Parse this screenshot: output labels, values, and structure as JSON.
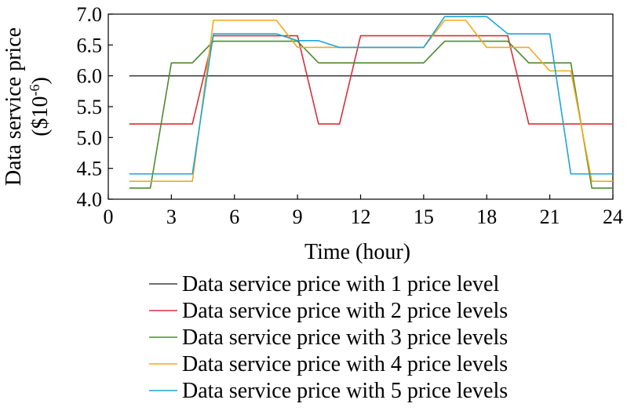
{
  "chart_data": {
    "type": "line",
    "xlabel": "Time (hour)",
    "ylabel": "Data service price",
    "ylabel_unit_prefix": "($10",
    "ylabel_unit_exp": "-6",
    "ylabel_unit_suffix": ")",
    "xlim": [
      0,
      24
    ],
    "ylim": [
      4.0,
      7.0
    ],
    "xticks": [
      0,
      3,
      6,
      9,
      12,
      15,
      18,
      21,
      24
    ],
    "yticks": [
      4.0,
      4.5,
      5.0,
      5.5,
      6.0,
      6.5,
      7.0
    ],
    "xtick_labels": [
      "0",
      "3",
      "6",
      "9",
      "12",
      "15",
      "18",
      "21",
      "24"
    ],
    "ytick_labels": [
      "4.0",
      "4.5",
      "5.0",
      "5.5",
      "6.0",
      "6.5",
      "7.0"
    ],
    "grid": false,
    "legend_position": "bottom",
    "series": [
      {
        "name": "Data service price with 1 price level",
        "color": "#404040",
        "x": [
          1,
          24
        ],
        "y": [
          6.0,
          6.0
        ]
      },
      {
        "name": "Data service price with 2 price levels",
        "color": "#d7303a",
        "x": [
          1,
          4,
          5,
          9,
          10,
          11,
          12,
          19,
          20,
          24
        ],
        "y": [
          5.22,
          5.22,
          6.65,
          6.65,
          5.22,
          5.22,
          6.65,
          6.65,
          5.22,
          5.22
        ]
      },
      {
        "name": "Data service price with 3 price levels",
        "color": "#4d8a2e",
        "x": [
          1,
          2,
          3,
          4,
          5,
          8,
          9,
          10,
          15,
          16,
          19,
          20,
          22,
          23,
          24
        ],
        "y": [
          4.18,
          4.18,
          6.21,
          6.21,
          6.56,
          6.56,
          6.56,
          6.21,
          6.21,
          6.56,
          6.56,
          6.21,
          6.21,
          4.18,
          4.18
        ]
      },
      {
        "name": "Data service price with 4 price levels",
        "color": "#f2a91d",
        "x": [
          1,
          4,
          5,
          8,
          9,
          11,
          15,
          16,
          17,
          18,
          20,
          21,
          22,
          23,
          24
        ],
        "y": [
          4.29,
          4.29,
          6.9,
          6.9,
          6.46,
          6.46,
          6.46,
          6.9,
          6.9,
          6.46,
          6.46,
          6.08,
          6.08,
          4.29,
          4.29
        ]
      },
      {
        "name": "Data service price with 5 price levels",
        "color": "#1da6d6",
        "x": [
          1,
          4,
          5,
          8,
          9,
          10,
          11,
          15,
          16,
          18,
          19,
          21,
          22,
          24
        ],
        "y": [
          4.41,
          4.41,
          6.68,
          6.68,
          6.57,
          6.57,
          6.46,
          6.46,
          6.96,
          6.96,
          6.68,
          6.68,
          4.41,
          4.41
        ]
      }
    ]
  }
}
